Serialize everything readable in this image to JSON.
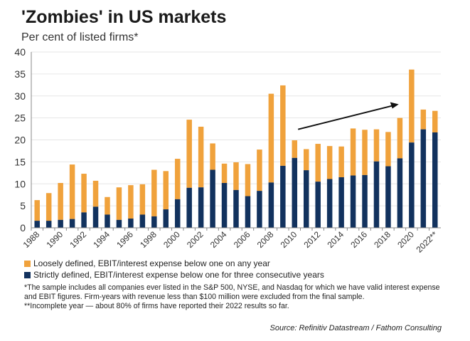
{
  "title": "'Zombies' in US markets",
  "subtitle": "Per cent of listed firms*",
  "chart_data": {
    "type": "bar",
    "stacked": true,
    "categories": [
      "1988",
      "1989",
      "1990",
      "1991",
      "1992",
      "1993",
      "1994",
      "1995",
      "1996",
      "1997",
      "1998",
      "1999",
      "2000",
      "2001",
      "2002",
      "2003",
      "2004",
      "2005",
      "2006",
      "2007",
      "2008",
      "2009",
      "2010",
      "2011",
      "2012",
      "2013",
      "2014",
      "2015",
      "2016",
      "2017",
      "2018",
      "2019",
      "2020",
      "2021",
      "2022**"
    ],
    "tick_labels": [
      "1988",
      "1990",
      "1992",
      "1994",
      "1996",
      "1998",
      "2000",
      "2002",
      "2004",
      "2006",
      "2008",
      "2010",
      "2012",
      "2014",
      "2016",
      "2018",
      "2020",
      "2022**"
    ],
    "series": [
      {
        "name": "Strictly defined, EBIT/interest expense below one for three consecutive years",
        "color": "#12325e",
        "values": [
          1.6,
          1.6,
          1.8,
          2.0,
          3.5,
          4.8,
          3.0,
          1.8,
          2.1,
          3.0,
          2.6,
          4.2,
          6.5,
          9.1,
          9.2,
          13.2,
          10.2,
          8.6,
          7.2,
          8.4,
          10.3,
          14.1,
          15.9,
          13.1,
          10.5,
          11.1,
          11.5,
          11.9,
          12.0,
          15.1,
          14.0,
          15.8,
          19.4,
          22.4,
          21.7
        ]
      },
      {
        "name": "Loosely defined, EBIT/interest expense below one on any year",
        "color": "#f0a23c",
        "totals": [
          6.3,
          7.9,
          10.2,
          14.4,
          12.3,
          10.7,
          7.0,
          9.2,
          9.7,
          9.9,
          13.2,
          12.9,
          15.7,
          24.6,
          23.0,
          19.2,
          14.6,
          14.9,
          14.5,
          17.8,
          30.5,
          32.4,
          19.9,
          17.9,
          19.1,
          18.6,
          18.5,
          22.6,
          22.3,
          22.4,
          21.8,
          25.0,
          36.0,
          26.9,
          26.6
        ]
      }
    ],
    "ylim": [
      0,
      40
    ],
    "yticks": [
      0,
      5,
      10,
      15,
      20,
      25,
      30,
      35,
      40
    ],
    "grid": true,
    "legend": "bottom",
    "annotation": "upward trend arrow from 2010 to 2019"
  },
  "notes": [
    "*The sample includes all companies ever listed in the S&P 500, NYSE, and Nasdaq for which we have valid interest expense and EBIT figures. Firm-years with revenue less than $100 million were excluded from the final sample.",
    "**Incomplete year — about 80% of firms have reported their 2022 results so far."
  ],
  "source": "Source: Refinitiv Datastream / Fathom Consulting"
}
